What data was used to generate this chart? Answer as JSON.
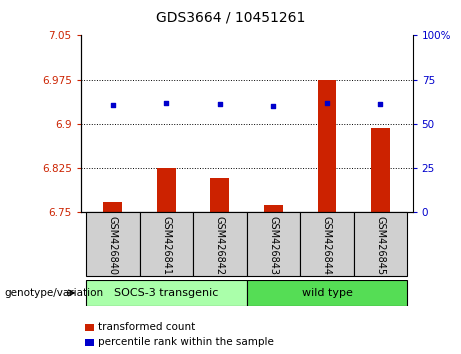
{
  "title": "GDS3664 / 10451261",
  "categories": [
    "GSM426840",
    "GSM426841",
    "GSM426842",
    "GSM426843",
    "GSM426844",
    "GSM426845"
  ],
  "bar_values": [
    6.768,
    6.825,
    6.808,
    6.762,
    6.975,
    6.893
  ],
  "blue_dot_values": [
    6.932,
    6.935,
    6.934,
    6.93,
    6.935,
    6.934
  ],
  "bar_color": "#cc2200",
  "dot_color": "#0000cc",
  "ylim_left": [
    6.75,
    7.05
  ],
  "ylim_right": [
    0,
    100
  ],
  "yticks_left": [
    6.75,
    6.825,
    6.9,
    6.975,
    7.05
  ],
  "yticks_right": [
    0,
    25,
    50,
    75,
    100
  ],
  "ytick_labels_left": [
    "6.75",
    "6.825",
    "6.9",
    "6.975",
    "7.05"
  ],
  "ytick_labels_right": [
    "0",
    "25",
    "50",
    "75",
    "100%"
  ],
  "hlines": [
    6.825,
    6.9,
    6.975
  ],
  "group1_label": "SOCS-3 transgenic",
  "group2_label": "wild type",
  "group1_indices": [
    0,
    1,
    2
  ],
  "group2_indices": [
    3,
    4,
    5
  ],
  "genotype_label": "genotype/variation",
  "legend_items": [
    "transformed count",
    "percentile rank within the sample"
  ],
  "legend_colors": [
    "#cc2200",
    "#0000cc"
  ],
  "bar_width": 0.35,
  "label_box_color": "#d0d0d0",
  "group1_color": "#aaffaa",
  "group2_color": "#55dd55",
  "tick_color_left": "#cc2200",
  "tick_color_right": "#0000cc"
}
